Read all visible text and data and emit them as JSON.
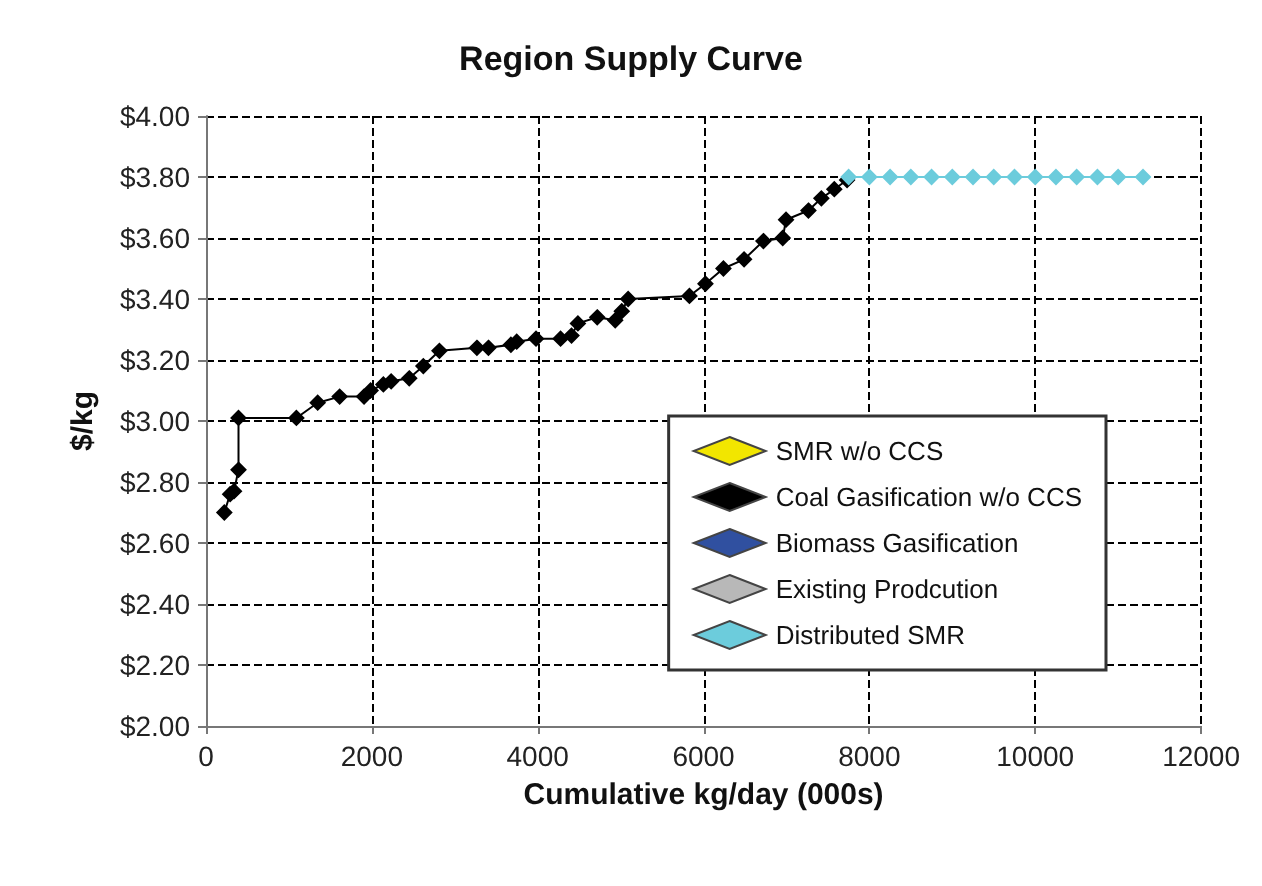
{
  "chart_data": {
    "type": "line",
    "title": "Region Supply Curve",
    "xlabel": "Cumulative kg/day (000s)",
    "ylabel": "$/kg",
    "series": [
      {
        "name": "SMR w/o CCS",
        "color": "#f2e600"
      },
      {
        "name": "Coal Gasification w/o CCS",
        "color": "#000000",
        "x": [
          221,
          291,
          338,
          392,
          392,
          1090,
          1347,
          1612,
          1906,
          1985,
          2139,
          2233,
          2451,
          2621,
          2815,
          3267,
          3406,
          3677,
          3747,
          3980,
          4276,
          4408,
          4485,
          4718,
          4935,
          5014,
          5091,
          5830,
          6023,
          6240,
          6489,
          6722,
          6955,
          6995,
          7265,
          7421,
          7577,
          7731
        ],
        "values": [
          2.7,
          2.76,
          2.77,
          2.84,
          3.01,
          3.01,
          3.06,
          3.08,
          3.08,
          3.1,
          3.12,
          3.13,
          3.14,
          3.18,
          3.23,
          3.24,
          3.24,
          3.25,
          3.26,
          3.27,
          3.27,
          3.28,
          3.32,
          3.34,
          3.33,
          3.36,
          3.4,
          3.41,
          3.45,
          3.5,
          3.53,
          3.59,
          3.6,
          3.66,
          3.69,
          3.73,
          3.76,
          3.79
        ]
      },
      {
        "name": "Biomass Gasification",
        "color": "#3050a0"
      },
      {
        "name": "Existing Prodcution",
        "color": "#b8b8b8"
      },
      {
        "name": "Distributed SMR",
        "color": "#6cccdc",
        "x": [
          7750,
          8000,
          8250,
          8500,
          8750,
          9000,
          9250,
          9500,
          9750,
          10000,
          10250,
          10500,
          10750,
          11000,
          11300
        ],
        "values": [
          3.8,
          3.8,
          3.8,
          3.8,
          3.8,
          3.8,
          3.8,
          3.8,
          3.8,
          3.8,
          3.8,
          3.8,
          3.8,
          3.8,
          3.8
        ]
      }
    ],
    "xlim": [
      0,
      12000
    ],
    "xticks": [
      0,
      2000,
      4000,
      6000,
      8000,
      10000,
      12000
    ],
    "ylim": [
      2.0,
      4.0
    ],
    "yticks": [
      {
        "value": 2.0,
        "label": "$2.00"
      },
      {
        "value": 2.2,
        "label": "$2.20"
      },
      {
        "value": 2.4,
        "label": "$2.40"
      },
      {
        "value": 2.6,
        "label": "$2.60"
      },
      {
        "value": 2.8,
        "label": "$2.80"
      },
      {
        "value": 3.0,
        "label": "$3.00"
      },
      {
        "value": 3.2,
        "label": "$3.20"
      },
      {
        "value": 3.4,
        "label": "$3.40"
      },
      {
        "value": 3.6,
        "label": "$3.60"
      },
      {
        "value": 3.8,
        "label": "$3.80"
      },
      {
        "value": 4.0,
        "label": "$4.00"
      }
    ],
    "grid": true,
    "legend": "bottom right",
    "marker": "diamond",
    "line_style": "solid"
  }
}
